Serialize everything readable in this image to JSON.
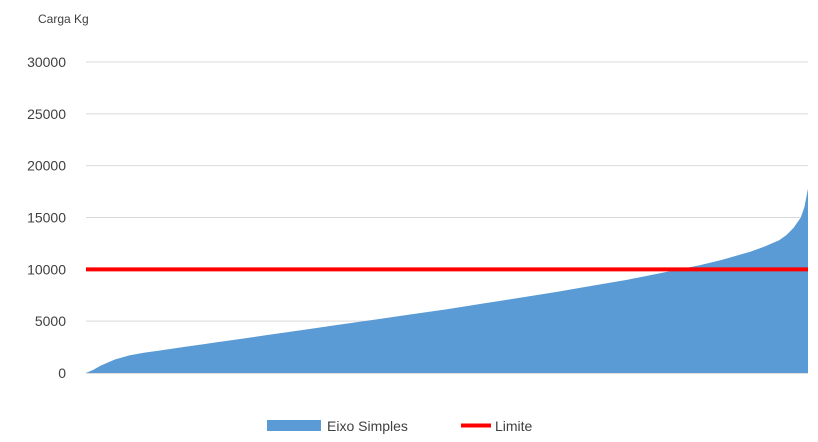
{
  "chart_data": {
    "type": "area",
    "ylabel": "Carga Kg",
    "ylim": [
      0,
      30000
    ],
    "y_ticks": [
      0,
      5000,
      10000,
      15000,
      20000,
      25000,
      30000
    ],
    "grid": "horizontal",
    "legend_position": "bottom",
    "x_ordered_by_rank": true,
    "series": [
      {
        "name": "Eixo Simples",
        "kind": "area",
        "color": "#5b9bd5",
        "x_percentile": [
          0,
          1,
          2,
          4,
          6,
          8,
          10,
          12,
          14,
          16,
          18,
          20,
          25,
          30,
          35,
          40,
          45,
          50,
          55,
          60,
          65,
          70,
          75,
          80,
          85,
          88,
          90,
          92,
          94,
          96,
          97,
          98,
          99,
          99.5,
          100
        ],
        "values": [
          0,
          300,
          700,
          1300,
          1700,
          1950,
          2150,
          2350,
          2550,
          2750,
          2950,
          3150,
          3650,
          4150,
          4650,
          5150,
          5650,
          6150,
          6700,
          7250,
          7800,
          8400,
          9000,
          9700,
          10400,
          10900,
          11300,
          11700,
          12200,
          12800,
          13300,
          14000,
          15000,
          16000,
          17800
        ]
      },
      {
        "name": "Limite",
        "kind": "line",
        "color": "#ff0000",
        "value": 10000
      }
    ]
  }
}
